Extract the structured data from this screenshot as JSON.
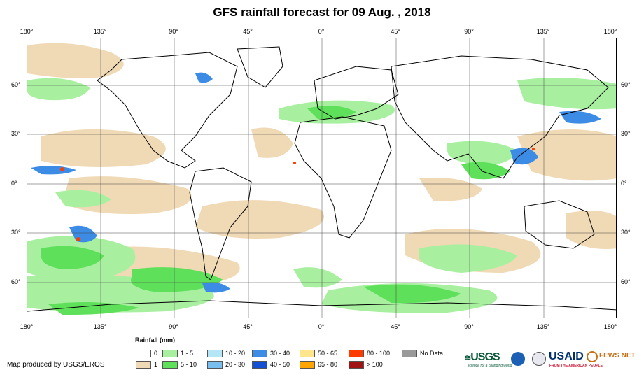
{
  "title": "GFS rainfall forecast for 09 Aug. , 2018",
  "axes": {
    "lon_labels": [
      "180°",
      "135°",
      "90°",
      "45°",
      "0°",
      "45°",
      "90°",
      "135°",
      "180°"
    ],
    "lat_labels": [
      "60°",
      "30°",
      "0°",
      "30°",
      "60°"
    ]
  },
  "legend": {
    "title": "Rainfall (mm)",
    "items": [
      {
        "label": "0",
        "color": "#ffffff"
      },
      {
        "label": "1",
        "color": "#f0d9b5"
      },
      {
        "label": "1 - 5",
        "color": "#a8f0a0"
      },
      {
        "label": "5 - 10",
        "color": "#5fe05a"
      },
      {
        "label": "10 - 20",
        "color": "#b4e6f5"
      },
      {
        "label": "20 - 30",
        "color": "#78bff0"
      },
      {
        "label": "30 - 40",
        "color": "#3c8ce6"
      },
      {
        "label": "40 - 50",
        "color": "#1450d2"
      },
      {
        "label": "50 - 65",
        "color": "#ffe68c"
      },
      {
        "label": "65 - 80",
        "color": "#ffa500"
      },
      {
        "label": "80 - 100",
        "color": "#ff3c00"
      },
      {
        "label": "> 100",
        "color": "#a01414"
      },
      {
        "label": "No Data",
        "color": "#999999"
      }
    ]
  },
  "credit": "Map produced by USGS/EROS",
  "logos": {
    "usgs": "USGS",
    "usgs_tagline": "science for a changing world",
    "usaid": "USAID",
    "usaid_tagline": "FROM THE AMERICAN PEOPLE",
    "fewsnet": "FEWS NET"
  },
  "colors": {
    "dry": "#f0d9b5",
    "light": "#a8f0a0",
    "moderate": "#5fe05a",
    "heavy": "#3c8ce6",
    "extreme": "#ff3c00"
  }
}
